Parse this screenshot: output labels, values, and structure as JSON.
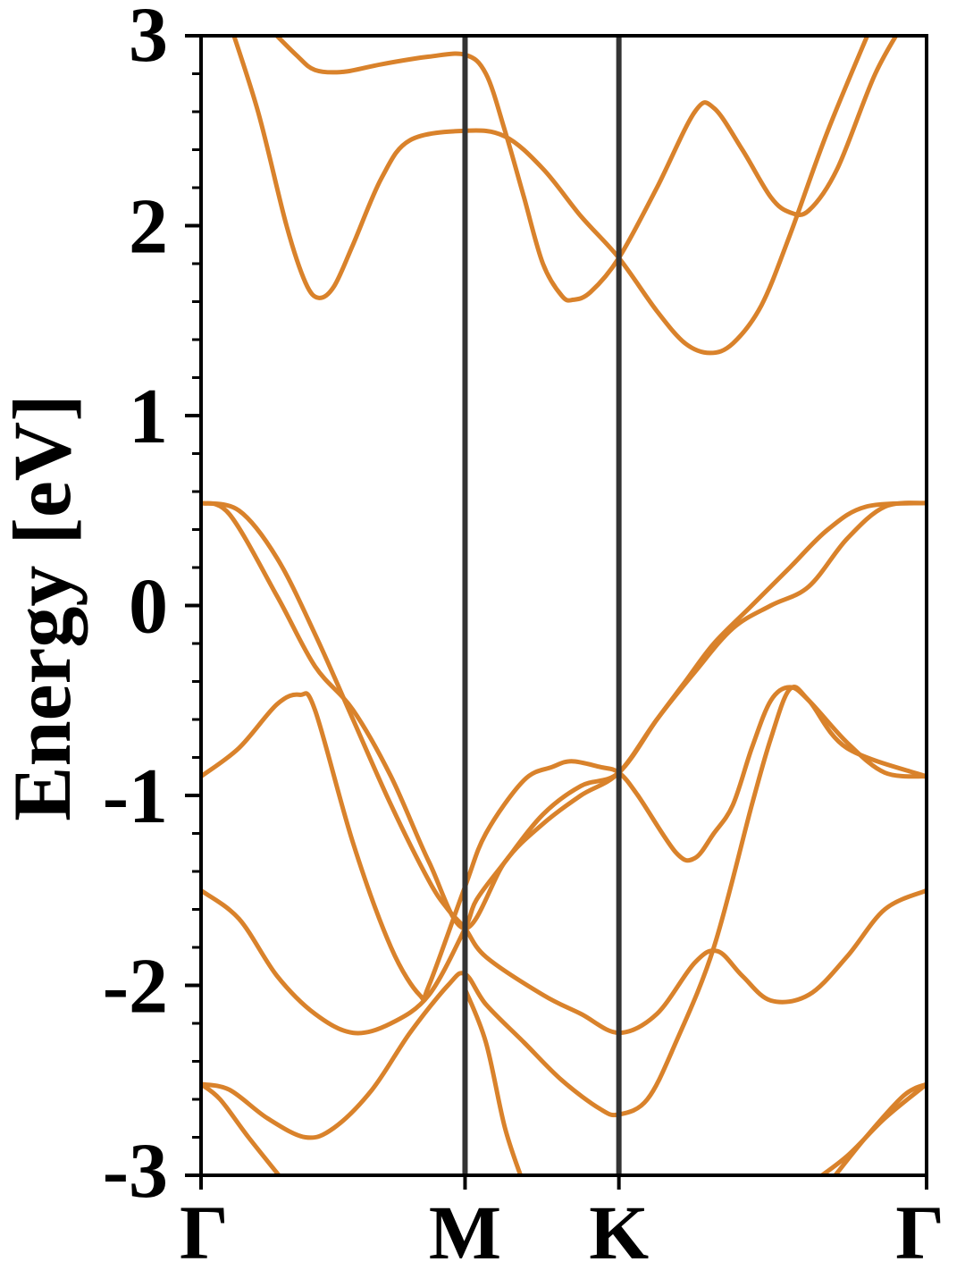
{
  "chart_data": {
    "type": "line",
    "title": "",
    "xlabel": "",
    "ylabel": "Energy [eV]",
    "ylim": [
      -3,
      3
    ],
    "yticks": [
      "-3",
      "-2",
      "-1",
      "0",
      "1",
      "2",
      "3"
    ],
    "ytick_values": [
      -3,
      -2,
      -1,
      0,
      1,
      2,
      3
    ],
    "minor_step": 0.2,
    "xlim": [
      0,
      3.82
    ],
    "kpoints": [
      {
        "label": "Γ",
        "x": 0
      },
      {
        "label": "M",
        "x": 1.39
      },
      {
        "label": "K",
        "x": 2.2
      },
      {
        "label": "Γ",
        "x": 3.82
      }
    ],
    "grid": false,
    "colors": {
      "band": "#d9822b",
      "axis": "#000000",
      "kline": "#333333"
    },
    "series": [
      {
        "values": [
          [
            0.14,
            3.1
          ],
          [
            0.3,
            2.6
          ],
          [
            0.45,
            2.0
          ],
          [
            0.55,
            1.7
          ],
          [
            0.62,
            1.62
          ],
          [
            0.7,
            1.68
          ],
          [
            0.8,
            1.9
          ],
          [
            0.95,
            2.25
          ],
          [
            1.1,
            2.45
          ],
          [
            1.39,
            2.5
          ],
          [
            1.6,
            2.47
          ],
          [
            1.8,
            2.3
          ],
          [
            2.0,
            2.05
          ],
          [
            2.2,
            1.83
          ],
          [
            2.4,
            1.55
          ],
          [
            2.55,
            1.38
          ],
          [
            2.68,
            1.33
          ],
          [
            2.8,
            1.38
          ],
          [
            2.95,
            1.58
          ],
          [
            3.1,
            1.95
          ],
          [
            3.3,
            2.5
          ],
          [
            3.55,
            3.1
          ]
        ]
      },
      {
        "values": [
          [
            0.35,
            3.05
          ],
          [
            0.5,
            2.9
          ],
          [
            0.6,
            2.82
          ],
          [
            0.75,
            2.81
          ],
          [
            0.95,
            2.85
          ],
          [
            1.2,
            2.89
          ],
          [
            1.39,
            2.9
          ],
          [
            1.5,
            2.8
          ],
          [
            1.6,
            2.5
          ],
          [
            1.7,
            2.15
          ],
          [
            1.8,
            1.8
          ],
          [
            1.9,
            1.63
          ],
          [
            1.96,
            1.61
          ],
          [
            2.05,
            1.65
          ],
          [
            2.2,
            1.83
          ],
          [
            2.4,
            2.2
          ],
          [
            2.6,
            2.6
          ],
          [
            2.7,
            2.62
          ],
          [
            2.85,
            2.4
          ],
          [
            3.0,
            2.15
          ],
          [
            3.1,
            2.07
          ],
          [
            3.2,
            2.08
          ],
          [
            3.35,
            2.3
          ],
          [
            3.55,
            2.8
          ],
          [
            3.72,
            3.1
          ]
        ]
      },
      {
        "values": [
          [
            0.0,
            0.54
          ],
          [
            0.2,
            0.5
          ],
          [
            0.4,
            0.25
          ],
          [
            0.6,
            -0.15
          ],
          [
            0.8,
            -0.6
          ],
          [
            1.0,
            -1.05
          ],
          [
            1.2,
            -1.45
          ],
          [
            1.3,
            -1.6
          ],
          [
            1.39,
            -1.7
          ],
          [
            1.5,
            -1.85
          ],
          [
            1.8,
            -2.05
          ],
          [
            2.0,
            -2.15
          ],
          [
            2.2,
            -2.25
          ],
          [
            2.4,
            -2.15
          ],
          [
            2.6,
            -1.88
          ],
          [
            2.72,
            -1.82
          ],
          [
            2.85,
            -1.95
          ],
          [
            3.0,
            -2.08
          ],
          [
            3.2,
            -2.05
          ],
          [
            3.4,
            -1.85
          ],
          [
            3.6,
            -1.6
          ],
          [
            3.82,
            -1.5
          ]
        ]
      },
      {
        "values": [
          [
            0.0,
            0.54
          ],
          [
            0.15,
            0.48
          ],
          [
            0.4,
            0.05
          ],
          [
            0.6,
            -0.32
          ],
          [
            0.8,
            -0.55
          ],
          [
            1.0,
            -0.9
          ],
          [
            1.2,
            -1.35
          ],
          [
            1.39,
            -1.7
          ],
          [
            1.6,
            -1.35
          ],
          [
            1.8,
            -1.15
          ],
          [
            2.0,
            -1.0
          ],
          [
            2.2,
            -0.88
          ],
          [
            2.4,
            -0.6
          ],
          [
            2.6,
            -0.35
          ],
          [
            2.8,
            -0.12
          ],
          [
            3.0,
            0.0
          ],
          [
            3.2,
            0.1
          ],
          [
            3.4,
            0.35
          ],
          [
            3.6,
            0.52
          ],
          [
            3.82,
            0.54
          ]
        ]
      },
      {
        "values": [
          [
            0.0,
            -0.9
          ],
          [
            0.2,
            -0.75
          ],
          [
            0.4,
            -0.52
          ],
          [
            0.52,
            -0.47
          ],
          [
            0.6,
            -0.55
          ],
          [
            0.8,
            -1.25
          ],
          [
            1.0,
            -1.8
          ],
          [
            1.15,
            -2.05
          ],
          [
            1.2,
            -2.0
          ],
          [
            1.39,
            -1.48
          ],
          [
            1.5,
            -1.2
          ],
          [
            1.7,
            -0.92
          ],
          [
            1.85,
            -0.85
          ],
          [
            1.95,
            -0.82
          ],
          [
            2.1,
            -0.85
          ],
          [
            2.2,
            -0.88
          ],
          [
            2.3,
            -1.0
          ],
          [
            2.5,
            -1.3
          ],
          [
            2.6,
            -1.33
          ],
          [
            2.7,
            -1.2
          ],
          [
            2.8,
            -1.05
          ],
          [
            2.9,
            -0.75
          ],
          [
            3.0,
            -0.5
          ],
          [
            3.1,
            -0.43
          ],
          [
            3.2,
            -0.5
          ],
          [
            3.4,
            -0.72
          ],
          [
            3.6,
            -0.88
          ],
          [
            3.82,
            -0.9
          ]
        ]
      },
      {
        "values": [
          [
            0.0,
            -1.5
          ],
          [
            0.2,
            -1.65
          ],
          [
            0.4,
            -1.95
          ],
          [
            0.6,
            -2.15
          ],
          [
            0.8,
            -2.25
          ],
          [
            1.0,
            -2.2
          ],
          [
            1.2,
            -2.05
          ],
          [
            1.39,
            -1.7
          ],
          [
            1.45,
            -1.55
          ],
          [
            1.6,
            -1.35
          ],
          [
            1.8,
            -1.1
          ],
          [
            2.0,
            -0.95
          ],
          [
            2.2,
            -0.88
          ],
          [
            2.4,
            -0.6
          ],
          [
            2.55,
            -0.4
          ],
          [
            2.7,
            -0.2
          ],
          [
            2.9,
            0.0
          ],
          [
            3.1,
            0.2
          ],
          [
            3.3,
            0.4
          ],
          [
            3.5,
            0.52
          ],
          [
            3.82,
            0.54
          ]
        ]
      },
      {
        "values": [
          [
            0.0,
            -2.52
          ],
          [
            0.15,
            -2.55
          ],
          [
            0.35,
            -2.7
          ],
          [
            0.55,
            -2.8
          ],
          [
            0.7,
            -2.75
          ],
          [
            0.9,
            -2.55
          ],
          [
            1.1,
            -2.25
          ],
          [
            1.3,
            -2.0
          ],
          [
            1.39,
            -1.94
          ],
          [
            1.5,
            -2.1
          ],
          [
            1.7,
            -2.3
          ],
          [
            1.9,
            -2.5
          ],
          [
            2.1,
            -2.65
          ],
          [
            2.2,
            -2.68
          ],
          [
            2.35,
            -2.6
          ],
          [
            2.5,
            -2.3
          ],
          [
            2.7,
            -1.8
          ],
          [
            2.9,
            -1.05
          ],
          [
            3.0,
            -0.7
          ],
          [
            3.1,
            -0.44
          ],
          [
            3.2,
            -0.5
          ],
          [
            3.4,
            -0.75
          ],
          [
            3.82,
            -0.9
          ]
        ]
      },
      {
        "values": [
          [
            0.0,
            -2.52
          ],
          [
            0.1,
            -2.6
          ],
          [
            0.25,
            -2.8
          ],
          [
            0.45,
            -3.05
          ]
        ]
      },
      {
        "values": [
          [
            1.39,
            -2.02
          ],
          [
            1.5,
            -2.3
          ],
          [
            1.6,
            -2.75
          ],
          [
            1.7,
            -3.05
          ]
        ]
      },
      {
        "values": [
          [
            3.2,
            -3.05
          ],
          [
            3.4,
            -2.9
          ],
          [
            3.6,
            -2.7
          ],
          [
            3.82,
            -2.52
          ]
        ]
      },
      {
        "values": [
          [
            3.3,
            -3.05
          ],
          [
            3.5,
            -2.8
          ],
          [
            3.7,
            -2.58
          ],
          [
            3.82,
            -2.52
          ]
        ]
      }
    ]
  }
}
